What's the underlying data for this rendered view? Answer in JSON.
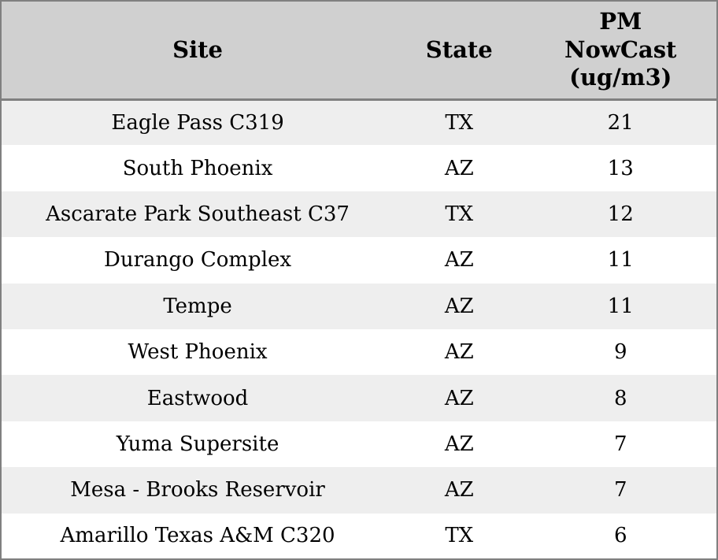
{
  "colors": {
    "header_bg": "#d0d0d0",
    "row_stripe_bg": "#eeeeee",
    "row_bg": "#ffffff",
    "border": "#808080",
    "text": "#000000"
  },
  "chart_data": {
    "type": "table",
    "title": "",
    "legend": "none",
    "grid": "row-stripes",
    "columns": [
      {
        "id": "site",
        "label": "Site"
      },
      {
        "id": "state",
        "label": "State"
      },
      {
        "id": "pm_nowcast",
        "label": "PM\nNowCast\n(ug/m3)"
      }
    ],
    "rows": [
      [
        "Eagle Pass C319",
        "TX",
        21
      ],
      [
        "South Phoenix",
        "AZ",
        13
      ],
      [
        "Ascarate Park Southeast C37",
        "TX",
        12
      ],
      [
        "Durango Complex",
        "AZ",
        11
      ],
      [
        "Tempe",
        "AZ",
        11
      ],
      [
        "West Phoenix",
        "AZ",
        9
      ],
      [
        "Eastwood",
        "AZ",
        8
      ],
      [
        "Yuma Supersite",
        "AZ",
        7
      ],
      [
        "Mesa - Brooks Reservoir",
        "AZ",
        7
      ],
      [
        "Amarillo Texas A&M C320",
        "TX",
        6
      ]
    ]
  }
}
